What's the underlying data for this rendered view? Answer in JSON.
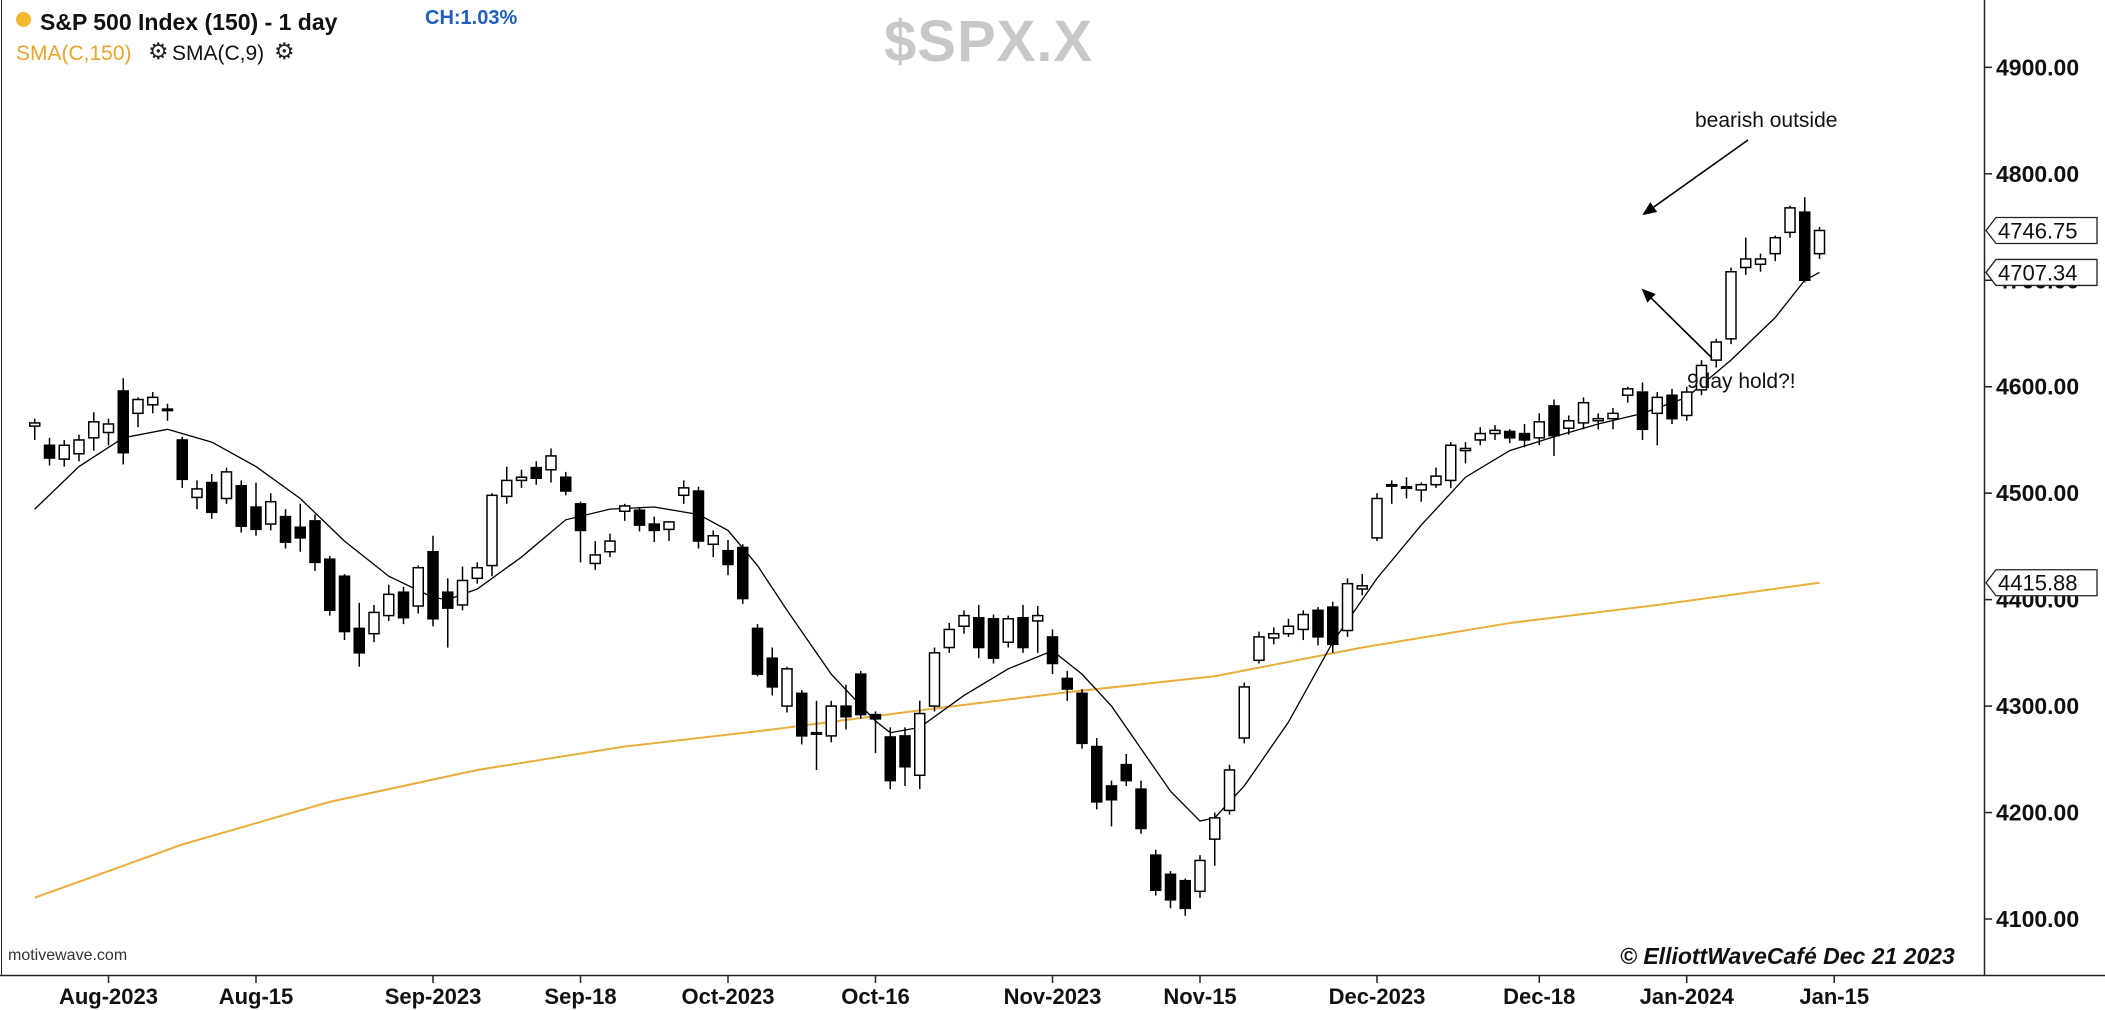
{
  "header": {
    "title": "S&P 500 Index (150) - 1 day",
    "change": "CH:1.03%",
    "indicator_1": "SMA(C,150)",
    "indicator_2": "SMA(C,9)",
    "watermark": "$SPX.X",
    "source": "motivewave.com",
    "credit": "© ElliottWaveCafé Dec 21 2023"
  },
  "icons": [
    "gear-icon",
    "gear-icon"
  ],
  "colors": {
    "up_candle": "#ffffff",
    "down_candle": "#000000",
    "sma150": "#e8ad3a",
    "sma9": "#000000",
    "title_dot": "#f2b931",
    "change_text": "#1f5fbf"
  },
  "chart_data": {
    "type": "candlestick",
    "title": "S&P 500 Index (150) - 1 day",
    "ylim": [
      4070,
      4990
    ],
    "y_ticks": [
      {
        "value": 4100,
        "label": "4100.00"
      },
      {
        "value": 4200,
        "label": "4200.00"
      },
      {
        "value": 4300,
        "label": "4300.00"
      },
      {
        "value": 4400,
        "label": "4400.00"
      },
      {
        "value": 4500,
        "label": "4500.00"
      },
      {
        "value": 4600,
        "label": "4600.00"
      },
      {
        "value": 4700,
        "label": "4700.00"
      },
      {
        "value": 4800,
        "label": "4800.00"
      },
      {
        "value": 4900,
        "label": "4900.00"
      }
    ],
    "x_ticks": [
      {
        "label": "Aug-2023",
        "index": 0
      },
      {
        "label": "Aug-15",
        "index": 10
      },
      {
        "label": "Sep-2023",
        "index": 22
      },
      {
        "label": "Sep-18",
        "index": 32
      },
      {
        "label": "Oct-2023",
        "index": 42
      },
      {
        "label": "Oct-16",
        "index": 52
      },
      {
        "label": "Nov-2023",
        "index": 64
      },
      {
        "label": "Nov-15",
        "index": 74
      },
      {
        "label": "Dec-2023",
        "index": 86
      },
      {
        "label": "Dec-18",
        "index": 97
      },
      {
        "label": "Jan-2024",
        "index": 107
      },
      {
        "label": "Jan-15",
        "index": 117
      }
    ],
    "price_tags": [
      {
        "value": 4746.75,
        "label": "4746.75"
      },
      {
        "value": 4707.34,
        "label": "4707.34"
      },
      {
        "value": 4415.88,
        "label": "4415.88"
      }
    ],
    "annotations": [
      {
        "text": "bearish outside",
        "at_index": 98,
        "value": 4775
      },
      {
        "text": "9day hold?!",
        "at_index": 98,
        "value": 4712
      }
    ],
    "candles": [
      {
        "i": -5,
        "o": 4563,
        "h": 4570,
        "l": 4550,
        "c": 4566
      },
      {
        "i": -4,
        "o": 4545,
        "h": 4552,
        "l": 4526,
        "c": 4533
      },
      {
        "i": -3,
        "o": 4532,
        "h": 4550,
        "l": 4525,
        "c": 4545
      },
      {
        "i": -2,
        "o": 4537,
        "h": 4555,
        "l": 4530,
        "c": 4550
      },
      {
        "i": -1,
        "o": 4552,
        "h": 4576,
        "l": 4540,
        "c": 4567
      },
      {
        "i": 0,
        "o": 4557,
        "h": 4570,
        "l": 4545,
        "c": 4565
      },
      {
        "i": 1,
        "o": 4596,
        "h": 4608,
        "l": 4527,
        "c": 4538
      },
      {
        "i": 2,
        "o": 4575,
        "h": 4590,
        "l": 4562,
        "c": 4588
      },
      {
        "i": 3,
        "o": 4583,
        "h": 4595,
        "l": 4575,
        "c": 4590
      },
      {
        "i": 4,
        "o": 4578,
        "h": 4584,
        "l": 4568,
        "c": 4579
      },
      {
        "i": 5,
        "o": 4550,
        "h": 4553,
        "l": 4505,
        "c": 4513
      },
      {
        "i": 6,
        "o": 4496,
        "h": 4512,
        "l": 4485,
        "c": 4504
      },
      {
        "i": 7,
        "o": 4510,
        "h": 4518,
        "l": 4476,
        "c": 4482
      },
      {
        "i": 8,
        "o": 4495,
        "h": 4524,
        "l": 4490,
        "c": 4520
      },
      {
        "i": 9,
        "o": 4507,
        "h": 4512,
        "l": 4463,
        "c": 4469
      },
      {
        "i": 10,
        "o": 4487,
        "h": 4510,
        "l": 4460,
        "c": 4466
      },
      {
        "i": 11,
        "o": 4471,
        "h": 4500,
        "l": 4465,
        "c": 4492
      },
      {
        "i": 12,
        "o": 4478,
        "h": 4485,
        "l": 4448,
        "c": 4454
      },
      {
        "i": 13,
        "o": 4468,
        "h": 4490,
        "l": 4445,
        "c": 4458
      },
      {
        "i": 14,
        "o": 4474,
        "h": 4480,
        "l": 4427,
        "c": 4435
      },
      {
        "i": 15,
        "o": 4438,
        "h": 4441,
        "l": 4385,
        "c": 4390
      },
      {
        "i": 16,
        "o": 4422,
        "h": 4424,
        "l": 4362,
        "c": 4370
      },
      {
        "i": 17,
        "o": 4373,
        "h": 4397,
        "l": 4337,
        "c": 4350
      },
      {
        "i": 18,
        "o": 4368,
        "h": 4395,
        "l": 4360,
        "c": 4388
      },
      {
        "i": 19,
        "o": 4385,
        "h": 4414,
        "l": 4380,
        "c": 4405
      },
      {
        "i": 20,
        "o": 4407,
        "h": 4412,
        "l": 4377,
        "c": 4383
      },
      {
        "i": 21,
        "o": 4394,
        "h": 4432,
        "l": 4387,
        "c": 4430
      },
      {
        "i": 22,
        "o": 4445,
        "h": 4460,
        "l": 4375,
        "c": 4382
      },
      {
        "i": 23,
        "o": 4407,
        "h": 4420,
        "l": 4355,
        "c": 4392
      },
      {
        "i": 24,
        "o": 4395,
        "h": 4431,
        "l": 4390,
        "c": 4418
      },
      {
        "i": 25,
        "o": 4420,
        "h": 4435,
        "l": 4415,
        "c": 4430
      },
      {
        "i": 26,
        "o": 4432,
        "h": 4500,
        "l": 4422,
        "c": 4498
      },
      {
        "i": 27,
        "o": 4497,
        "h": 4525,
        "l": 4490,
        "c": 4512
      },
      {
        "i": 28,
        "o": 4512,
        "h": 4522,
        "l": 4505,
        "c": 4515
      },
      {
        "i": 29,
        "o": 4524,
        "h": 4530,
        "l": 4508,
        "c": 4514
      },
      {
        "i": 30,
        "o": 4522,
        "h": 4542,
        "l": 4510,
        "c": 4535
      },
      {
        "i": 31,
        "o": 4515,
        "h": 4520,
        "l": 4498,
        "c": 4502
      },
      {
        "i": 32,
        "o": 4490,
        "h": 4492,
        "l": 4435,
        "c": 4465
      },
      {
        "i": 33,
        "o": 4434,
        "h": 4455,
        "l": 4428,
        "c": 4442
      },
      {
        "i": 34,
        "o": 4445,
        "h": 4462,
        "l": 4440,
        "c": 4455
      },
      {
        "i": 35,
        "o": 4483,
        "h": 4490,
        "l": 4474,
        "c": 4488
      },
      {
        "i": 36,
        "o": 4484,
        "h": 4487,
        "l": 4464,
        "c": 4470
      },
      {
        "i": 37,
        "o": 4471,
        "h": 4478,
        "l": 4454,
        "c": 4465
      },
      {
        "i": 38,
        "o": 4466,
        "h": 4473,
        "l": 4455,
        "c": 4473
      },
      {
        "i": 39,
        "o": 4498,
        "h": 4512,
        "l": 4490,
        "c": 4505
      },
      {
        "i": 40,
        "o": 4502,
        "h": 4506,
        "l": 4448,
        "c": 4455
      },
      {
        "i": 41,
        "o": 4452,
        "h": 4465,
        "l": 4440,
        "c": 4460
      },
      {
        "i": 42,
        "o": 4446,
        "h": 4456,
        "l": 4423,
        "c": 4433
      },
      {
        "i": 43,
        "o": 4449,
        "h": 4452,
        "l": 4396,
        "c": 4401
      },
      {
        "i": 44,
        "o": 4373,
        "h": 4377,
        "l": 4328,
        "c": 4330
      },
      {
        "i": 45,
        "o": 4345,
        "h": 4355,
        "l": 4310,
        "c": 4318
      },
      {
        "i": 46,
        "o": 4300,
        "h": 4337,
        "l": 4294,
        "c": 4335
      },
      {
        "i": 47,
        "o": 4312,
        "h": 4315,
        "l": 4264,
        "c": 4272
      },
      {
        "i": 48,
        "o": 4275,
        "h": 4305,
        "l": 4240,
        "c": 4275
      },
      {
        "i": 49,
        "o": 4272,
        "h": 4305,
        "l": 4266,
        "c": 4300
      },
      {
        "i": 50,
        "o": 4300,
        "h": 4320,
        "l": 4278,
        "c": 4290
      },
      {
        "i": 51,
        "o": 4330,
        "h": 4333,
        "l": 4288,
        "c": 4292
      },
      {
        "i": 52,
        "o": 4292,
        "h": 4295,
        "l": 4256,
        "c": 4288
      },
      {
        "i": 53,
        "o": 4271,
        "h": 4280,
        "l": 4222,
        "c": 4230
      },
      {
        "i": 54,
        "o": 4272,
        "h": 4280,
        "l": 4225,
        "c": 4243
      },
      {
        "i": 55,
        "o": 4235,
        "h": 4305,
        "l": 4222,
        "c": 4293
      },
      {
        "i": 56,
        "o": 4300,
        "h": 4355,
        "l": 4295,
        "c": 4350
      },
      {
        "i": 57,
        "o": 4355,
        "h": 4378,
        "l": 4350,
        "c": 4372
      },
      {
        "i": 58,
        "o": 4375,
        "h": 4390,
        "l": 4368,
        "c": 4385
      },
      {
        "i": 59,
        "o": 4383,
        "h": 4395,
        "l": 4345,
        "c": 4355
      },
      {
        "i": 60,
        "o": 4382,
        "h": 4386,
        "l": 4340,
        "c": 4345
      },
      {
        "i": 61,
        "o": 4360,
        "h": 4385,
        "l": 4355,
        "c": 4382
      },
      {
        "i": 62,
        "o": 4383,
        "h": 4395,
        "l": 4350,
        "c": 4355
      },
      {
        "i": 63,
        "o": 4380,
        "h": 4394,
        "l": 4350,
        "c": 4385
      },
      {
        "i": 64,
        "o": 4365,
        "h": 4372,
        "l": 4330,
        "c": 4340
      },
      {
        "i": 65,
        "o": 4326,
        "h": 4333,
        "l": 4305,
        "c": 4316
      },
      {
        "i": 66,
        "o": 4312,
        "h": 4316,
        "l": 4260,
        "c": 4265
      },
      {
        "i": 67,
        "o": 4262,
        "h": 4270,
        "l": 4203,
        "c": 4210
      },
      {
        "i": 68,
        "o": 4225,
        "h": 4230,
        "l": 4187,
        "c": 4212
      },
      {
        "i": 69,
        "o": 4245,
        "h": 4255,
        "l": 4225,
        "c": 4230
      },
      {
        "i": 70,
        "o": 4222,
        "h": 4230,
        "l": 4180,
        "c": 4185
      },
      {
        "i": 71,
        "o": 4160,
        "h": 4165,
        "l": 4122,
        "c": 4127
      },
      {
        "i": 72,
        "o": 4142,
        "h": 4145,
        "l": 4110,
        "c": 4118
      },
      {
        "i": 73,
        "o": 4136,
        "h": 4138,
        "l": 4103,
        "c": 4110
      },
      {
        "i": 74,
        "o": 4126,
        "h": 4160,
        "l": 4120,
        "c": 4155
      },
      {
        "i": 75,
        "o": 4175,
        "h": 4200,
        "l": 4150,
        "c": 4195
      },
      {
        "i": 76,
        "o": 4202,
        "h": 4245,
        "l": 4198,
        "c": 4240
      },
      {
        "i": 77,
        "o": 4270,
        "h": 4322,
        "l": 4265,
        "c": 4318
      },
      {
        "i": 78,
        "o": 4343,
        "h": 4370,
        "l": 4340,
        "c": 4365
      },
      {
        "i": 79,
        "o": 4364,
        "h": 4374,
        "l": 4358,
        "c": 4368
      },
      {
        "i": 80,
        "o": 4368,
        "h": 4382,
        "l": 4365,
        "c": 4375
      },
      {
        "i": 81,
        "o": 4372,
        "h": 4390,
        "l": 4362,
        "c": 4386
      },
      {
        "i": 82,
        "o": 4390,
        "h": 4393,
        "l": 4357,
        "c": 4365
      },
      {
        "i": 83,
        "o": 4393,
        "h": 4398,
        "l": 4350,
        "c": 4358
      },
      {
        "i": 84,
        "o": 4371,
        "h": 4420,
        "l": 4365,
        "c": 4415
      },
      {
        "i": 85,
        "o": 4410,
        "h": 4424,
        "l": 4404,
        "c": 4413
      },
      {
        "i": 86,
        "o": 4458,
        "h": 4500,
        "l": 4455,
        "c": 4495
      },
      {
        "i": 87,
        "o": 4507,
        "h": 4512,
        "l": 4490,
        "c": 4508
      },
      {
        "i": 88,
        "o": 4505,
        "h": 4515,
        "l": 4495,
        "c": 4506
      },
      {
        "i": 89,
        "o": 4503,
        "h": 4510,
        "l": 4492,
        "c": 4508
      },
      {
        "i": 90,
        "o": 4508,
        "h": 4524,
        "l": 4505,
        "c": 4516
      },
      {
        "i": 91,
        "o": 4512,
        "h": 4548,
        "l": 4505,
        "c": 4545
      },
      {
        "i": 92,
        "o": 4540,
        "h": 4548,
        "l": 4528,
        "c": 4542
      },
      {
        "i": 93,
        "o": 4550,
        "h": 4562,
        "l": 4545,
        "c": 4556
      },
      {
        "i": 94,
        "o": 4556,
        "h": 4564,
        "l": 4550,
        "c": 4559
      },
      {
        "i": 95,
        "o": 4558,
        "h": 4560,
        "l": 4547,
        "c": 4552
      },
      {
        "i": 96,
        "o": 4556,
        "h": 4565,
        "l": 4543,
        "c": 4550
      },
      {
        "i": 97,
        "o": 4552,
        "h": 4575,
        "l": 4545,
        "c": 4567
      },
      {
        "i": 98,
        "o": 4582,
        "h": 4588,
        "l": 4535,
        "c": 4554
      },
      {
        "i": 99,
        "o": 4561,
        "h": 4573,
        "l": 4555,
        "c": 4568
      },
      {
        "i": 100,
        "o": 4566,
        "h": 4590,
        "l": 4560,
        "c": 4585
      },
      {
        "i": 101,
        "o": 4568,
        "h": 4575,
        "l": 4560,
        "c": 4570
      },
      {
        "i": 102,
        "o": 4570,
        "h": 4580,
        "l": 4560,
        "c": 4575
      },
      {
        "i": 103,
        "o": 4592,
        "h": 4600,
        "l": 4585,
        "c": 4598
      },
      {
        "i": 104,
        "o": 4595,
        "h": 4604,
        "l": 4550,
        "c": 4560
      },
      {
        "i": 105,
        "o": 4575,
        "h": 4595,
        "l": 4545,
        "c": 4590
      },
      {
        "i": 106,
        "o": 4592,
        "h": 4598,
        "l": 4565,
        "c": 4570
      },
      {
        "i": 107,
        "o": 4573,
        "h": 4600,
        "l": 4568,
        "c": 4595
      },
      {
        "i": 108,
        "o": 4597,
        "h": 4625,
        "l": 4592,
        "c": 4620
      },
      {
        "i": 109,
        "o": 4625,
        "h": 4645,
        "l": 4618,
        "c": 4642
      },
      {
        "i": 110,
        "o": 4645,
        "h": 4712,
        "l": 4640,
        "c": 4708
      },
      {
        "i": 111,
        "o": 4712,
        "h": 4740,
        "l": 4705,
        "c": 4720
      },
      {
        "i": 112,
        "o": 4715,
        "h": 4725,
        "l": 4708,
        "c": 4720
      },
      {
        "i": 113,
        "o": 4725,
        "h": 4742,
        "l": 4718,
        "c": 4740
      },
      {
        "i": 114,
        "o": 4745,
        "h": 4770,
        "l": 4740,
        "c": 4768
      },
      {
        "i": 115,
        "o": 4764,
        "h": 4778,
        "l": 4698,
        "c": 4700
      },
      {
        "i": 116,
        "o": 4725,
        "h": 4750,
        "l": 4720,
        "c": 4746.75
      }
    ],
    "sma9": [
      {
        "i": -5,
        "v": 4485
      },
      {
        "i": -2,
        "v": 4525
      },
      {
        "i": 1,
        "v": 4552
      },
      {
        "i": 4,
        "v": 4560
      },
      {
        "i": 7,
        "v": 4548
      },
      {
        "i": 10,
        "v": 4525
      },
      {
        "i": 13,
        "v": 4495
      },
      {
        "i": 16,
        "v": 4455
      },
      {
        "i": 19,
        "v": 4422
      },
      {
        "i": 22,
        "v": 4402
      },
      {
        "i": 23,
        "v": 4400
      },
      {
        "i": 25,
        "v": 4410
      },
      {
        "i": 28,
        "v": 4440
      },
      {
        "i": 31,
        "v": 4475
      },
      {
        "i": 34,
        "v": 4485
      },
      {
        "i": 37,
        "v": 4487
      },
      {
        "i": 40,
        "v": 4480
      },
      {
        "i": 42,
        "v": 4465
      },
      {
        "i": 44,
        "v": 4432
      },
      {
        "i": 46,
        "v": 4390
      },
      {
        "i": 49,
        "v": 4330
      },
      {
        "i": 52,
        "v": 4286
      },
      {
        "i": 53,
        "v": 4275
      },
      {
        "i": 55,
        "v": 4280
      },
      {
        "i": 58,
        "v": 4310
      },
      {
        "i": 61,
        "v": 4335
      },
      {
        "i": 64,
        "v": 4352
      },
      {
        "i": 66,
        "v": 4330
      },
      {
        "i": 68,
        "v": 4300
      },
      {
        "i": 70,
        "v": 4260
      },
      {
        "i": 72,
        "v": 4220
      },
      {
        "i": 74,
        "v": 4192
      },
      {
        "i": 75,
        "v": 4195
      },
      {
        "i": 77,
        "v": 4225
      },
      {
        "i": 80,
        "v": 4285
      },
      {
        "i": 83,
        "v": 4360
      },
      {
        "i": 86,
        "v": 4420
      },
      {
        "i": 89,
        "v": 4470
      },
      {
        "i": 92,
        "v": 4515
      },
      {
        "i": 95,
        "v": 4540
      },
      {
        "i": 98,
        "v": 4553
      },
      {
        "i": 101,
        "v": 4565
      },
      {
        "i": 104,
        "v": 4575
      },
      {
        "i": 107,
        "v": 4590
      },
      {
        "i": 110,
        "v": 4625
      },
      {
        "i": 113,
        "v": 4665
      },
      {
        "i": 115,
        "v": 4700
      },
      {
        "i": 116,
        "v": 4707.34
      }
    ],
    "sma150": [
      {
        "i": -5,
        "v": 4120
      },
      {
        "i": 5,
        "v": 4170
      },
      {
        "i": 15,
        "v": 4210
      },
      {
        "i": 25,
        "v": 4240
      },
      {
        "i": 35,
        "v": 4262
      },
      {
        "i": 45,
        "v": 4278
      },
      {
        "i": 55,
        "v": 4296
      },
      {
        "i": 65,
        "v": 4313
      },
      {
        "i": 75,
        "v": 4328
      },
      {
        "i": 85,
        "v": 4355
      },
      {
        "i": 95,
        "v": 4378
      },
      {
        "i": 105,
        "v": 4395
      },
      {
        "i": 116,
        "v": 4415.88
      }
    ]
  }
}
